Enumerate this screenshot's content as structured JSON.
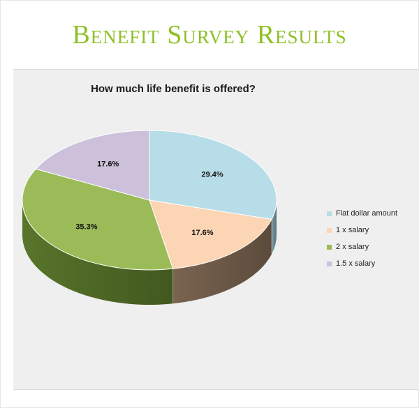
{
  "page": {
    "title": "Benefit Survey Results"
  },
  "chart_data": {
    "type": "pie",
    "title": "How much life benefit is offered?",
    "categories": [
      "Flat dollar amount",
      "1 x salary",
      "2 x salary",
      "1.5 x salary"
    ],
    "values": [
      29.4,
      17.6,
      35.3,
      17.6
    ],
    "labels": [
      "29.4%",
      "17.6%",
      "35.3%",
      "17.6%"
    ],
    "colors": [
      "#b7dde8",
      "#fcd5b4",
      "#9bbb59",
      "#ccc0da"
    ],
    "side_colors": [
      "#7a9aa2",
      "#7a6450",
      "#58752a",
      "#8a7f9a"
    ],
    "legend_position": "right",
    "style": "3d"
  }
}
